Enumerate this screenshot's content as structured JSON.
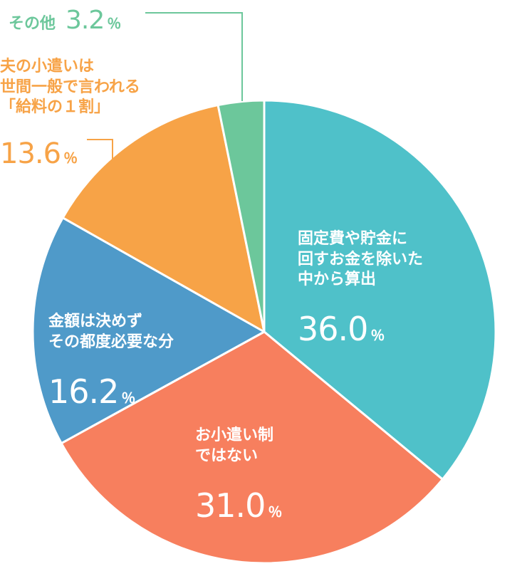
{
  "chart_data": {
    "type": "pie",
    "slices": [
      {
        "key": "fixed",
        "label": "固定費や貯金に\n回すお金を除いた\n中から算出",
        "value": 36.0,
        "value_text": "36.0",
        "unit": "％",
        "color": "#4fc1c9"
      },
      {
        "key": "none",
        "label": "お小遣い制\nではない",
        "value": 31.0,
        "value_text": "31.0",
        "unit": "％",
        "color": "#f77f5e"
      },
      {
        "key": "free",
        "label": "金額は決めず\nその都度必要な分",
        "value": 16.2,
        "value_text": "16.2",
        "unit": "％",
        "color": "#4f9ac9"
      },
      {
        "key": "allow",
        "label": "夫の小遣いは\n世間一般で言われる\n「給料の１割」",
        "value": 13.6,
        "value_text": "13.6",
        "unit": "％",
        "color": "#f7a347"
      },
      {
        "key": "other",
        "label": "その他",
        "value": 3.2,
        "value_text": "3.2",
        "unit": "％",
        "color": "#6cc79b"
      }
    ],
    "start_angle_deg": 0,
    "direction": "clockwise",
    "legend": "none"
  }
}
